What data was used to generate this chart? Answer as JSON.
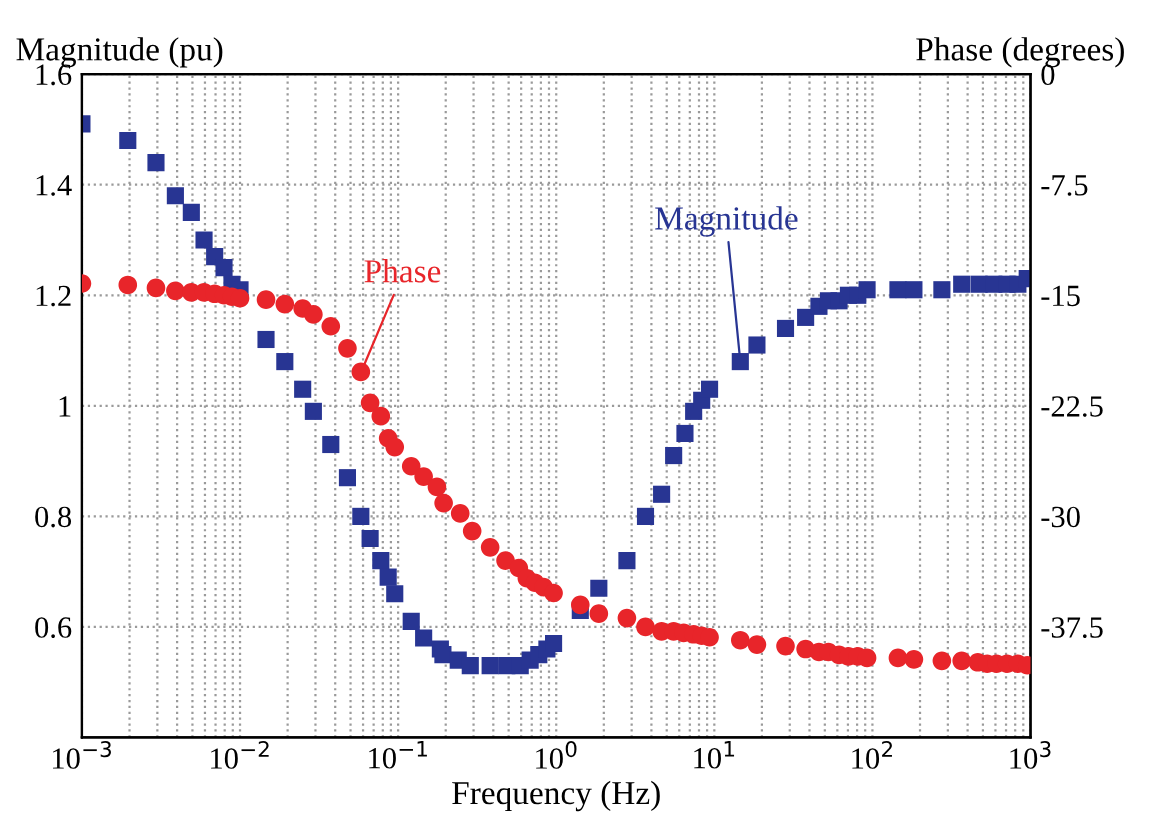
{
  "chart_data": {
    "type": "scatter",
    "xlabel": "Frequency (Hz)",
    "ylabel": "Magnitude (pu)",
    "y2label": "Phase (degrees)",
    "log": "x",
    "grid": true,
    "xlim": [
      0.001,
      1000
    ],
    "xticks": [
      {
        "value": 0.001,
        "label": "10$^{−3}$"
      },
      {
        "value": 0.01,
        "label": "10$^{−2}$"
      },
      {
        "value": 0.1,
        "label": "10$^{−1}$"
      },
      {
        "value": 1,
        "label": "10$^{0}$"
      },
      {
        "value": 10,
        "label": "10$^{1}$"
      },
      {
        "value": 100,
        "label": "10$^{2}$"
      },
      {
        "value": 1000,
        "label": "10$^{3}$"
      }
    ],
    "ylim": [
      0.4,
      1.6
    ],
    "yticks": [
      0.6,
      0.8,
      1,
      1.2,
      1.4,
      1.6
    ],
    "y2lim": [
      -45,
      0
    ],
    "y2ticks": [
      -37.5,
      -30,
      -22.5,
      -15,
      -7.5,
      0
    ],
    "series": [
      {
        "color": "#283593",
        "marker": "square",
        "x": [
          0.001,
          0.00195,
          0.00294,
          0.0039,
          0.00492,
          0.00592,
          0.00691,
          0.00792,
          0.00889,
          0.01,
          0.0146,
          0.0192,
          0.0249,
          0.0291,
          0.0375,
          0.0478,
          0.0581,
          0.0665,
          0.0777,
          0.0865,
          0.0952,
          0.121,
          0.145,
          0.185,
          0.192,
          0.24,
          0.286,
          0.382,
          0.487,
          0.592,
          0.684,
          0.776,
          0.873,
          0.962,
          1.42,
          1.86,
          2.8,
          3.67,
          4.64,
          5.53,
          6.52,
          7.4,
          8.32,
          9.33,
          14.6,
          18.6,
          28.2,
          37.8,
          45.9,
          52.7,
          61.5,
          70.5,
          80.8,
          92.5,
          145,
          183,
          275,
          367,
          473,
          586,
          711,
          832,
          953
        ],
        "values": [
          1.51,
          1.48,
          1.44,
          1.38,
          1.35,
          1.3,
          1.27,
          1.25,
          1.22,
          1.21,
          1.12,
          1.08,
          1.03,
          0.99,
          0.93,
          0.87,
          0.8,
          0.76,
          0.72,
          0.69,
          0.66,
          0.61,
          0.58,
          0.56,
          0.55,
          0.54,
          0.53,
          0.53,
          0.53,
          0.53,
          0.54,
          0.55,
          0.56,
          0.57,
          0.63,
          0.67,
          0.72,
          0.8,
          0.84,
          0.91,
          0.95,
          0.99,
          1.01,
          1.03,
          1.08,
          1.11,
          1.14,
          1.16,
          1.18,
          1.19,
          1.19,
          1.2,
          1.2,
          1.21,
          1.21,
          1.21,
          1.21,
          1.22,
          1.22,
          1.22,
          1.22,
          1.22,
          1.23
        ]
      },
      {
        "color": "#e8252a",
        "marker": "circle",
        "axis": "y2",
        "x": [
          0.001,
          0.00195,
          0.00294,
          0.0039,
          0.00492,
          0.00592,
          0.00691,
          0.00792,
          0.00889,
          0.01,
          0.0146,
          0.0192,
          0.0249,
          0.0291,
          0.0375,
          0.0478,
          0.0581,
          0.0665,
          0.0777,
          0.0865,
          0.0952,
          0.121,
          0.145,
          0.176,
          0.194,
          0.247,
          0.294,
          0.382,
          0.478,
          0.58,
          0.652,
          0.733,
          0.832,
          0.962,
          1.42,
          1.86,
          2.8,
          3.67,
          4.64,
          5.53,
          6.4,
          7.4,
          8.32,
          9.33,
          14.6,
          18.6,
          28.2,
          37.8,
          45.9,
          52.7,
          61.5,
          70.5,
          80.8,
          92.5,
          145,
          183,
          275,
          367,
          464,
          532,
          610,
          711,
          832,
          953
        ],
        "values": [
          -14.2,
          -14.3,
          -14.5,
          -14.7,
          -14.8,
          -14.8,
          -14.9,
          -15.0,
          -15.1,
          -15.2,
          -15.3,
          -15.6,
          -15.9,
          -16.3,
          -17.1,
          -18.6,
          -20.2,
          -22.3,
          -23.2,
          -24.7,
          -25.3,
          -26.6,
          -27.3,
          -28.0,
          -29.1,
          -29.8,
          -31.0,
          -32.1,
          -33.0,
          -33.5,
          -34.2,
          -34.5,
          -34.8,
          -35.2,
          -36.0,
          -36.6,
          -36.9,
          -37.5,
          -37.8,
          -37.8,
          -37.9,
          -38.0,
          -38.1,
          -38.2,
          -38.4,
          -38.7,
          -38.8,
          -39.0,
          -39.2,
          -39.2,
          -39.4,
          -39.5,
          -39.5,
          -39.6,
          -39.6,
          -39.7,
          -39.8,
          -39.8,
          -39.9,
          -40.0,
          -40.0,
          -40.0,
          -40.0,
          -40.1
        ]
      }
    ],
    "annotations": [
      {
        "text": "Magnitude",
        "x": 14.6,
        "y": 1.08
      },
      {
        "text": "Phase",
        "x": 0.0581,
        "y": 1.06
      }
    ]
  }
}
